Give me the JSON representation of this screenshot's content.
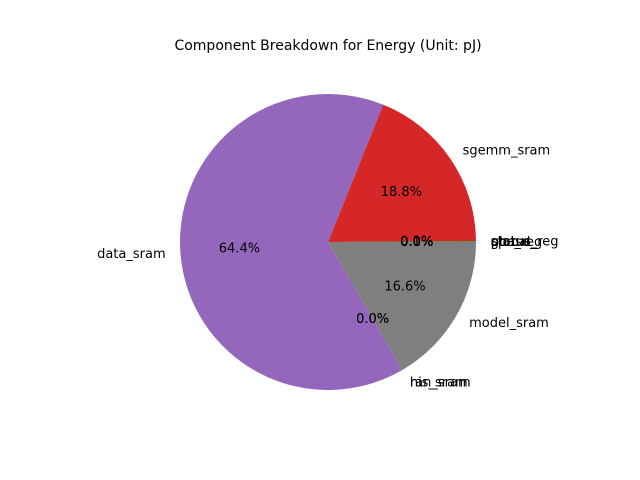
{
  "chart_data": {
    "type": "pie",
    "title": "Component Breakdown for Energy (Unit: pJ)",
    "start_angle_deg": 0,
    "direction": "counterclockwise",
    "slices": [
      {
        "label": "cpu_reg",
        "pct": 0.0,
        "color": "#1f77b4"
      },
      {
        "label": "pc",
        "pct": 0.0,
        "color": "#ff7f0e"
      },
      {
        "label": "status_reg",
        "pct": 0.1,
        "color": "#2ca02c"
      },
      {
        "label": "sgemm_sram",
        "pct": 18.8,
        "color": "#d62728"
      },
      {
        "label": "data_sram",
        "pct": 64.4,
        "color": "#9467bd"
      },
      {
        "label": "his_sram",
        "pct": 0.0,
        "color": "#8c564b"
      },
      {
        "label": "ran_sram",
        "pct": 0.0,
        "color": "#e377c2"
      },
      {
        "label": "model_sram",
        "pct": 16.6,
        "color": "#7f7f7f"
      },
      {
        "label": "global_",
        "pct": 0.0,
        "color": "#bcbd22"
      },
      {
        "label": "phase_",
        "pct": 0.0,
        "color": "#17becf"
      }
    ]
  }
}
